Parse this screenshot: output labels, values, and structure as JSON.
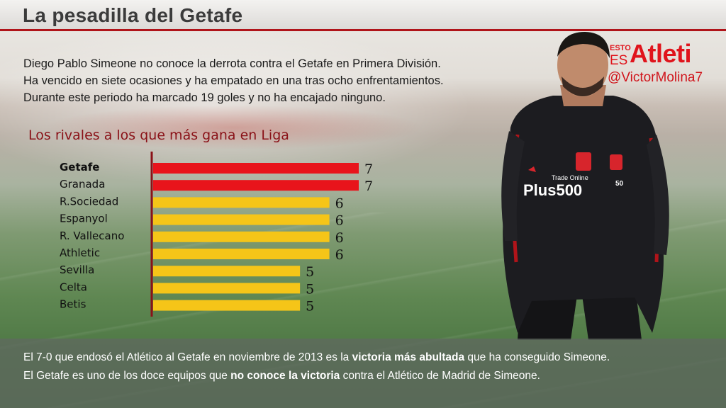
{
  "header": {
    "title": "La pesadilla del Getafe"
  },
  "intro": {
    "lines": [
      "Diego Pablo Simeone no conoce la derrota contra el Getafe en Primera División.",
      "Ha vencido en siete ocasiones y ha empatado en una tras ocho enfrentamientos.",
      "Durante este periodo ha marcado 19 goles y no ha encajado ninguno."
    ]
  },
  "brand": {
    "esto": "ESTO",
    "es": "ES",
    "atleti": "Atleti",
    "handle": "@VictorMolina7"
  },
  "chart_data": {
    "type": "bar",
    "orientation": "horizontal",
    "title": "Los rivales a los que más gana en Liga",
    "categories": [
      "Getafe",
      "Granada",
      "R.Sociedad",
      "Espanyol",
      "R. Vallecano",
      "Athletic",
      "Sevilla",
      "Celta",
      "Betis"
    ],
    "values": [
      7,
      7,
      6,
      6,
      6,
      6,
      5,
      5,
      5
    ],
    "highlight": [
      "Getafe",
      "Granada"
    ],
    "bold_category": "Getafe",
    "colors": {
      "highlight": "#e8141b",
      "default": "#f5c518",
      "axis": "#8a1218"
    },
    "xlim": [
      0,
      7
    ],
    "grid": false,
    "legend": "none"
  },
  "footer": {
    "line1": {
      "pre": "El 7-0 que endosó el Atlético al Getafe en noviembre de 2013 es la ",
      "bold": "victoria más abultada",
      "post": " que ha conseguido Simeone."
    },
    "line2": {
      "pre": "El Getafe es uno de los doce equipos que ",
      "bold": "no conoce la victoria",
      "post": " contra el Atlético de Madrid de Simeone."
    }
  },
  "coach_badges": {
    "sponsor_small": "Trade Online",
    "sponsor": "Plus500",
    "number": "50"
  }
}
